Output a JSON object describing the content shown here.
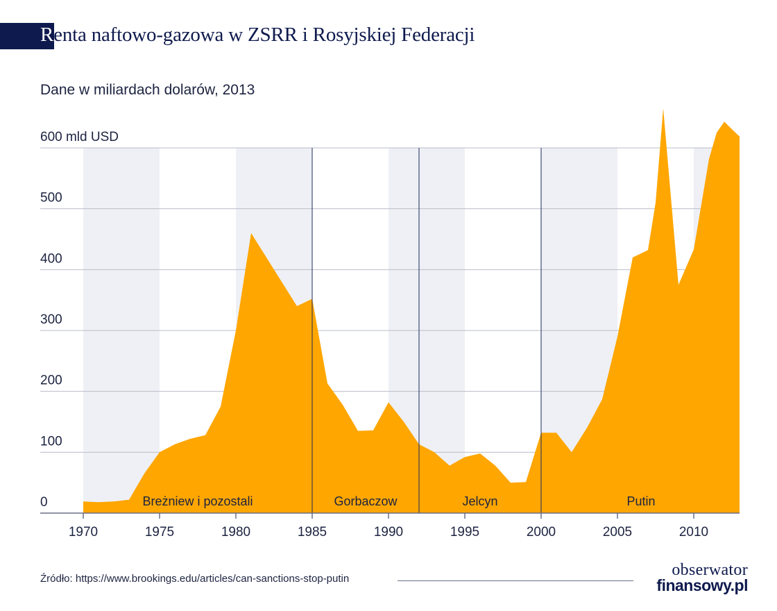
{
  "header": {
    "title_first_letter": "R",
    "title_rest": "enta naftowo-gazowa w ZSRR i Rosyjskiej Federacji",
    "subtitle": "Dane w miliardach dolarów, 2013"
  },
  "chart_data": {
    "type": "area",
    "title": "Renta naftowo-gazowa w ZSRR i Rosyjskiej Federacji",
    "subtitle": "Dane w miliardach dolarów, 2013",
    "xlabel": "",
    "ylabel": "",
    "xlim": [
      1970,
      2013
    ],
    "ylim": [
      0,
      600
    ],
    "grid": true,
    "colors": {
      "area": "#ffa600",
      "band": "#eef0f5",
      "divider": "#1e2a5a",
      "grid": "#b9bcc8",
      "text": "#1c2340"
    },
    "y_ticks": [
      {
        "value": 0,
        "label": "0"
      },
      {
        "value": 100,
        "label": "100"
      },
      {
        "value": 200,
        "label": "200"
      },
      {
        "value": 300,
        "label": "300"
      },
      {
        "value": 400,
        "label": "400"
      },
      {
        "value": 500,
        "label": "500"
      },
      {
        "value": 600,
        "label": "600 mld USD"
      }
    ],
    "x_ticks": [
      1970,
      1975,
      1980,
      1985,
      1990,
      1995,
      2000,
      2005,
      2010
    ],
    "x_tick_labels": [
      "1970",
      "1975",
      "1980",
      "1985",
      "1990",
      "1995",
      "2000",
      "2005",
      "2010"
    ],
    "shaded_bands": [
      [
        1970,
        1975
      ],
      [
        1980,
        1985
      ],
      [
        1990,
        1995
      ],
      [
        2000,
        2005
      ],
      [
        2010,
        2013
      ]
    ],
    "eras": [
      {
        "label": "Breżniew i pozostali",
        "start": 1970,
        "end": 1985
      },
      {
        "label": "Gorbaczow",
        "start": 1985,
        "end": 1992
      },
      {
        "label": "Jelcyn",
        "start": 1992,
        "end": 2000
      },
      {
        "label": "Putin",
        "start": 2000,
        "end": 2013
      }
    ],
    "dividers": [
      1985,
      1992,
      2000
    ],
    "series": [
      {
        "points": [
          [
            1970,
            19
          ],
          [
            1971,
            18
          ],
          [
            1972,
            19
          ],
          [
            1973,
            22
          ],
          [
            1974,
            65
          ],
          [
            1975,
            100
          ],
          [
            1976,
            113
          ],
          [
            1977,
            122
          ],
          [
            1978,
            128
          ],
          [
            1979,
            175
          ],
          [
            1980,
            300
          ],
          [
            1981,
            460
          ],
          [
            1982,
            420
          ],
          [
            1983,
            380
          ],
          [
            1984,
            340
          ],
          [
            1985,
            352
          ],
          [
            1986,
            213
          ],
          [
            1987,
            178
          ],
          [
            1988,
            135
          ],
          [
            1989,
            136
          ],
          [
            1990,
            182
          ],
          [
            1991,
            150
          ],
          [
            1992,
            113
          ],
          [
            1993,
            100
          ],
          [
            1994,
            78
          ],
          [
            1995,
            92
          ],
          [
            1996,
            98
          ],
          [
            1997,
            78
          ],
          [
            1998,
            50
          ],
          [
            1999,
            51
          ],
          [
            2000,
            132
          ],
          [
            2001,
            132
          ],
          [
            2002,
            100
          ],
          [
            2003,
            140
          ],
          [
            2004,
            187
          ],
          [
            2005,
            290
          ],
          [
            2006,
            420
          ],
          [
            2007,
            432
          ],
          [
            2007.5,
            510
          ],
          [
            2008,
            665
          ],
          [
            2009,
            375
          ],
          [
            2010,
            433
          ],
          [
            2011,
            582
          ],
          [
            2011.5,
            625
          ],
          [
            2012,
            643
          ],
          [
            2012.9,
            621
          ],
          [
            2013,
            619
          ]
        ]
      }
    ]
  },
  "footer": {
    "source": "Źródło: https://www.brookings.edu/articles/can-sanctions-stop-putin",
    "logo_line1": "obserwator",
    "logo_line2": "finansowy.pl"
  }
}
